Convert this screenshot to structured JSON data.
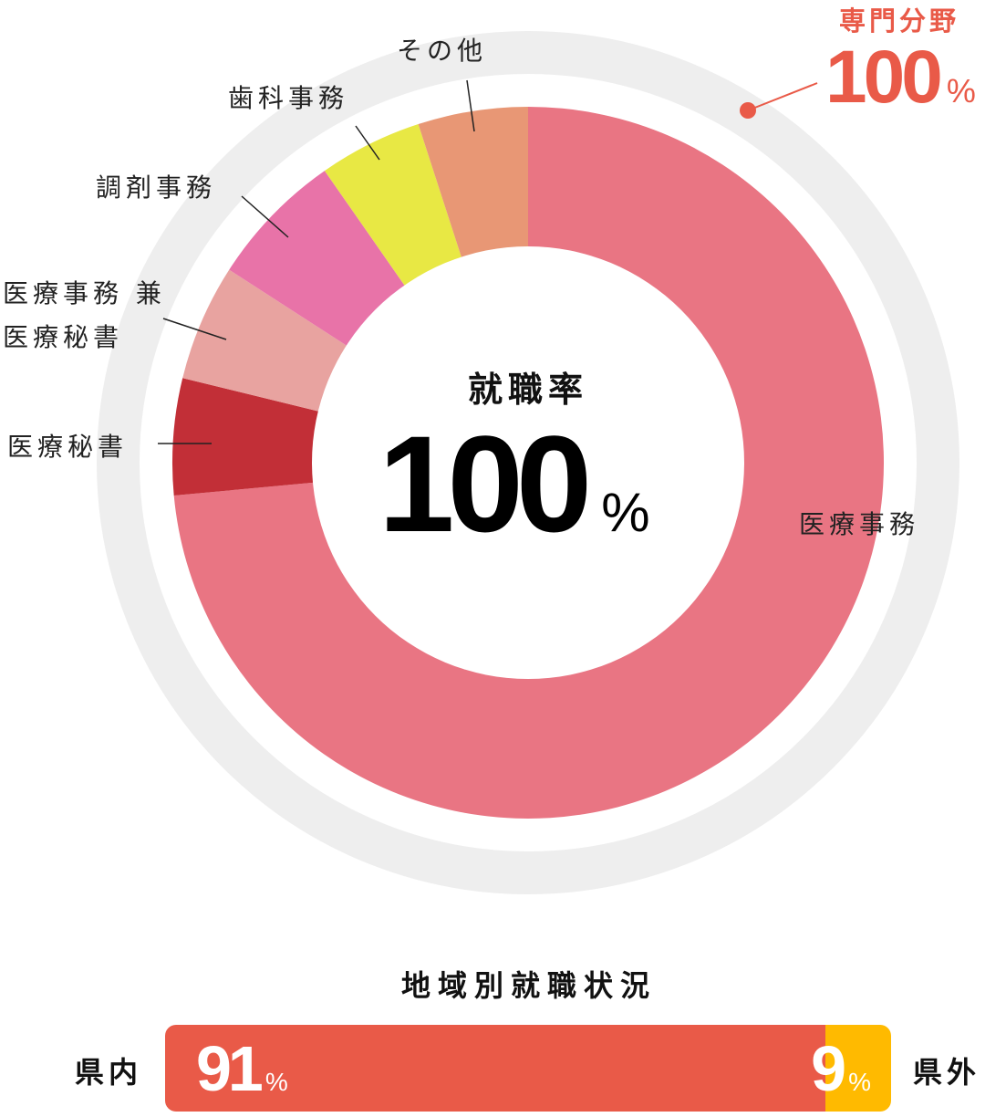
{
  "chart_data": [
    {
      "type": "pie",
      "subtype": "donut",
      "center_title": "就職率",
      "center_value": "100",
      "center_unit": "%",
      "categories": [
        "医療事務",
        "医療秘書",
        "医療事務 兼 医療秘書",
        "調剤事務",
        "歯科事務",
        "その他"
      ],
      "values": [
        73.6,
        5.3,
        5.3,
        6.2,
        4.7,
        5.0
      ],
      "colors": [
        "#e97583",
        "#c22f37",
        "#e8a3a0",
        "#e873a8",
        "#e8e844",
        "#e89775"
      ],
      "outer_ring": {
        "label": "専門分野",
        "value": "100",
        "unit": "%",
        "color": "#eeeeee",
        "accent": "#e95a48"
      },
      "labels": {
        "l0": "医療事務",
        "l1": "医療秘書",
        "l2a": "医療事務 兼",
        "l2b": "医療秘書",
        "l3": "調剤事務",
        "l4": "歯科事務",
        "l5": "その他"
      }
    },
    {
      "type": "bar",
      "subtype": "stacked-horizontal",
      "title": "地域別就職状況",
      "categories": [
        "県内",
        "県外"
      ],
      "values": [
        91,
        9
      ],
      "unit": "%",
      "colors": [
        "#e95a48",
        "#ffba00"
      ]
    }
  ]
}
